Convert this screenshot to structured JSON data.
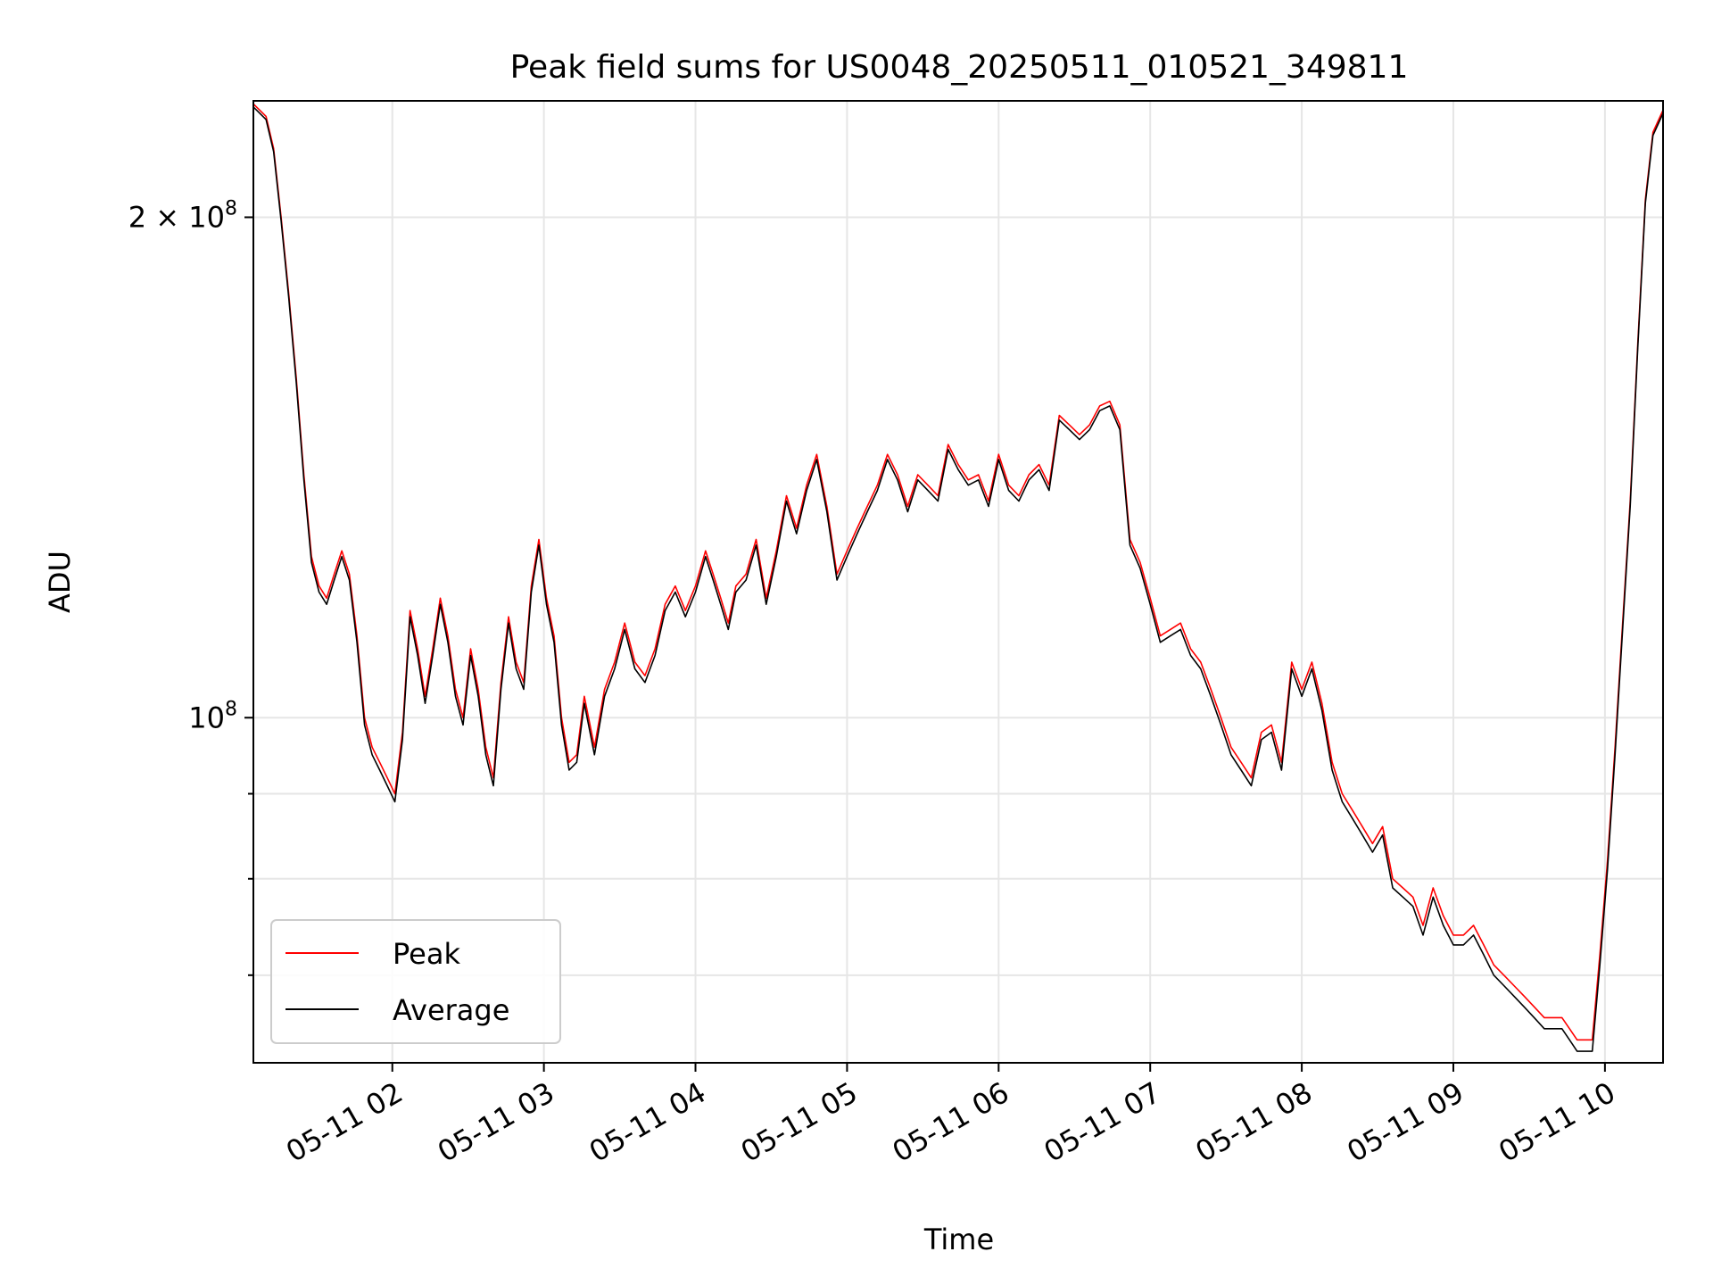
{
  "chart_data": {
    "type": "line",
    "title": "Peak field sums for US0048_20250511_010521_349811",
    "xlabel": "Time",
    "ylabel": "ADU",
    "yscale": "log",
    "xlim": [
      "05-11 01:05",
      "05-11 10:23"
    ],
    "ylim": [
      62000000,
      235000000
    ],
    "grid": true,
    "legend_position": "lower-left",
    "x_ticks": [
      "05-11 02",
      "05-11 03",
      "05-11 04",
      "05-11 05",
      "05-11 06",
      "05-11 07",
      "05-11 08",
      "05-11 09",
      "05-11 10"
    ],
    "y_ticks": [
      {
        "value": 100000000,
        "label_base": "10",
        "label_exp": "8",
        "label_mult": ""
      },
      {
        "value": 200000000,
        "label_base": "10",
        "label_exp": "8",
        "label_mult": "2 × "
      }
    ],
    "y_minor_ticks": [
      70000000,
      80000000,
      90000000
    ],
    "x": [
      "05-11 01:05",
      "05-11 01:10",
      "05-11 01:13",
      "05-11 01:16",
      "05-11 01:19",
      "05-11 01:22",
      "05-11 01:25",
      "05-11 01:28",
      "05-11 01:31",
      "05-11 01:34",
      "05-11 01:37",
      "05-11 01:40",
      "05-11 01:43",
      "05-11 01:46",
      "05-11 01:49",
      "05-11 01:52",
      "05-11 01:55",
      "05-11 01:58",
      "05-11 02:01",
      "05-11 02:04",
      "05-11 02:07",
      "05-11 02:10",
      "05-11 02:13",
      "05-11 02:16",
      "05-11 02:19",
      "05-11 02:22",
      "05-11 02:25",
      "05-11 02:28",
      "05-11 02:31",
      "05-11 02:34",
      "05-11 02:37",
      "05-11 02:40",
      "05-11 02:43",
      "05-11 02:46",
      "05-11 02:49",
      "05-11 02:52",
      "05-11 02:55",
      "05-11 02:58",
      "05-11 03:01",
      "05-11 03:04",
      "05-11 03:07",
      "05-11 03:10",
      "05-11 03:13",
      "05-11 03:16",
      "05-11 03:20",
      "05-11 03:24",
      "05-11 03:28",
      "05-11 03:32",
      "05-11 03:36",
      "05-11 03:40",
      "05-11 03:44",
      "05-11 03:48",
      "05-11 03:52",
      "05-11 03:56",
      "05-11 04:00",
      "05-11 04:04",
      "05-11 04:07",
      "05-11 04:10",
      "05-11 04:13",
      "05-11 04:16",
      "05-11 04:20",
      "05-11 04:24",
      "05-11 04:28",
      "05-11 04:32",
      "05-11 04:36",
      "05-11 04:40",
      "05-11 04:44",
      "05-11 04:48",
      "05-11 04:52",
      "05-11 04:56",
      "05-11 05:00",
      "05-11 05:04",
      "05-11 05:08",
      "05-11 05:12",
      "05-11 05:16",
      "05-11 05:20",
      "05-11 05:24",
      "05-11 05:28",
      "05-11 05:32",
      "05-11 05:36",
      "05-11 05:40",
      "05-11 05:44",
      "05-11 05:48",
      "05-11 05:52",
      "05-11 05:56",
      "05-11 06:00",
      "05-11 06:04",
      "05-11 06:08",
      "05-11 06:12",
      "05-11 06:16",
      "05-11 06:20",
      "05-11 06:24",
      "05-11 06:28",
      "05-11 06:32",
      "05-11 06:36",
      "05-11 06:40",
      "05-11 06:44",
      "05-11 06:48",
      "05-11 06:52",
      "05-11 06:56",
      "05-11 07:00",
      "05-11 07:04",
      "05-11 07:08",
      "05-11 07:12",
      "05-11 07:16",
      "05-11 07:20",
      "05-11 07:24",
      "05-11 07:28",
      "05-11 07:32",
      "05-11 07:36",
      "05-11 07:40",
      "05-11 07:44",
      "05-11 07:48",
      "05-11 07:52",
      "05-11 07:56",
      "05-11 08:00",
      "05-11 08:04",
      "05-11 08:08",
      "05-11 08:12",
      "05-11 08:16",
      "05-11 08:20",
      "05-11 08:24",
      "05-11 08:28",
      "05-11 08:32",
      "05-11 08:36",
      "05-11 08:40",
      "05-11 08:44",
      "05-11 08:48",
      "05-11 08:52",
      "05-11 08:56",
      "05-11 09:00",
      "05-11 09:04",
      "05-11 09:08",
      "05-11 09:12",
      "05-11 09:16",
      "05-11 09:20",
      "05-11 09:24",
      "05-11 09:28",
      "05-11 09:32",
      "05-11 09:36",
      "05-11 09:40",
      "05-11 09:43",
      "05-11 09:46",
      "05-11 09:49",
      "05-11 09:52",
      "05-11 09:55",
      "05-11 09:58",
      "05-11 10:01",
      "05-11 10:04",
      "05-11 10:07",
      "05-11 10:10",
      "05-11 10:13",
      "05-11 10:16",
      "05-11 10:19",
      "05-11 10:23"
    ],
    "series": [
      {
        "name": "Peak",
        "color": "#ff0000",
        "values": [
          234,
          230,
          220,
          200,
          180,
          160,
          140,
          125,
          120,
          118,
          122,
          126,
          122,
          112,
          100,
          96,
          94,
          92,
          90,
          98,
          116,
          110,
          103,
          110,
          118,
          112,
          104,
          100,
          110,
          104,
          96,
          92,
          105,
          115,
          108,
          105,
          120,
          128,
          118,
          112,
          100,
          94,
          95,
          103,
          96,
          104,
          108,
          114,
          108,
          106,
          110,
          117,
          120,
          116,
          120,
          126,
          122,
          118,
          114,
          120,
          122,
          128,
          118,
          126,
          136,
          130,
          138,
          144,
          134,
          122,
          126,
          130,
          134,
          138,
          144,
          140,
          134,
          140,
          138,
          136,
          146,
          142,
          139,
          140,
          135,
          144,
          138,
          136,
          140,
          142,
          138,
          152,
          150,
          148,
          150,
          154,
          155,
          150,
          128,
          124,
          118,
          112,
          113,
          114,
          110,
          108,
          104,
          100,
          96,
          94,
          92,
          98,
          99,
          94,
          108,
          104,
          108,
          102,
          94,
          90,
          88,
          86,
          84,
          86,
          80,
          79,
          78,
          75,
          79,
          76,
          74,
          74,
          75,
          73,
          71,
          70,
          69,
          68,
          67,
          66,
          66,
          66,
          65,
          64,
          64,
          64,
          72,
          82,
          96,
          114,
          135,
          168,
          205,
          225,
          232
        ]
      },
      {
        "name": "Average",
        "color": "#000000",
        "values": [
          233,
          229,
          219,
          199,
          179,
          159,
          139,
          124,
          119,
          117,
          121,
          125,
          121,
          111,
          99,
          95,
          93,
          91,
          89,
          97,
          115,
          109,
          102,
          109,
          117,
          111,
          103,
          99,
          109,
          103,
          95,
          91,
          104,
          114,
          107,
          104,
          119,
          127,
          117,
          111,
          99,
          93,
          94,
          102,
          95,
          103,
          107,
          113,
          107,
          105,
          109,
          116,
          119,
          115,
          119,
          125,
          121,
          117,
          113,
          119,
          121,
          127,
          117,
          125,
          135,
          129,
          137,
          143,
          133,
          121,
          125,
          129,
          133,
          137,
          143,
          139,
          133,
          139,
          137,
          135,
          145,
          141,
          138,
          139,
          134,
          143,
          137,
          135,
          139,
          141,
          137,
          151,
          149,
          147,
          149,
          153,
          154,
          149,
          127,
          123,
          117,
          111,
          112,
          113,
          109,
          107,
          103,
          99,
          95,
          93,
          91,
          97,
          98,
          93,
          107,
          103,
          107,
          101,
          93,
          89,
          87,
          85,
          83,
          85,
          79,
          78,
          77,
          74,
          78,
          75,
          73,
          73,
          74,
          72,
          70,
          69,
          68,
          67,
          66,
          65,
          65,
          65,
          64,
          63,
          63,
          63,
          71,
          81,
          95,
          113,
          134,
          167,
          204,
          224,
          231
        ]
      }
    ],
    "values_unit": "1e6 ADU"
  }
}
